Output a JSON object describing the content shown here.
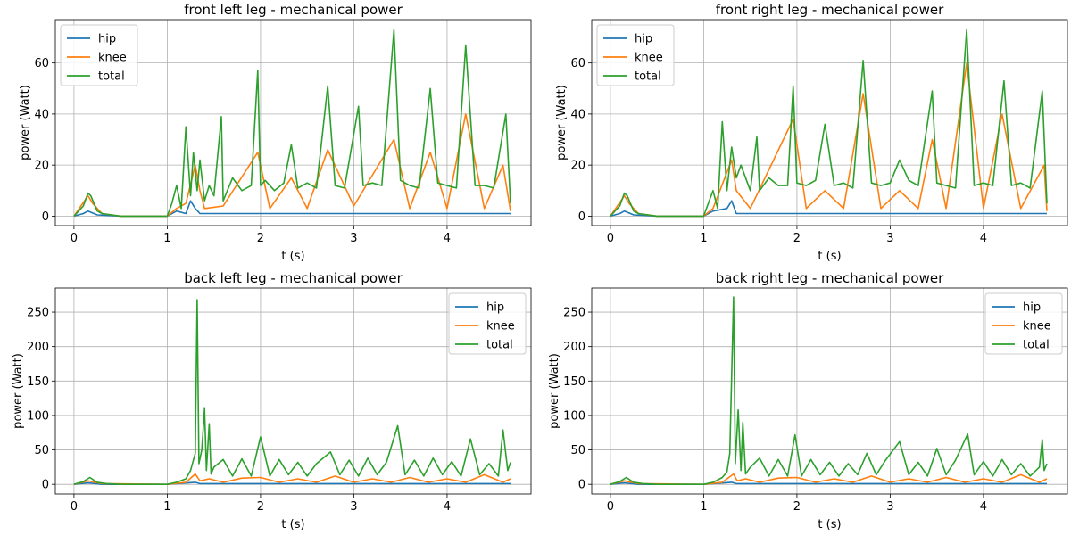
{
  "colors": {
    "hip": "#1f77b4",
    "knee": "#ff7f0e",
    "total": "#2ca02c"
  },
  "chart_data": [
    {
      "type": "line",
      "title": "front left leg - mechanical power",
      "xlabel": "t (s)",
      "ylabel": "power (Watt)",
      "xlim": [
        -0.2,
        4.9
      ],
      "ylim": [
        -3.7,
        77
      ],
      "xticks": [
        0,
        1,
        2,
        3,
        4
      ],
      "yticks": [
        0,
        20,
        40,
        60
      ],
      "grid": true,
      "legend_position": "top-left",
      "series": [
        {
          "name": "hip",
          "color": "#1f77b4",
          "x": [
            0.0,
            0.1,
            0.15,
            0.25,
            0.5,
            1.0,
            1.1,
            1.2,
            1.25,
            1.3,
            1.35,
            1.5,
            2.0,
            2.5,
            3.0,
            3.5,
            4.0,
            4.5,
            4.68
          ],
          "y": [
            0,
            1,
            2,
            0.5,
            0,
            0,
            2,
            1,
            6,
            3,
            1,
            1,
            1,
            1,
            1,
            1,
            1,
            1,
            1
          ]
        },
        {
          "name": "knee",
          "color": "#ff7f0e",
          "x": [
            0.0,
            0.15,
            0.2,
            0.3,
            0.5,
            1.0,
            1.1,
            1.2,
            1.3,
            1.35,
            1.4,
            1.6,
            1.97,
            2.1,
            2.33,
            2.5,
            2.72,
            3.0,
            3.43,
            3.6,
            3.82,
            4.0,
            4.2,
            4.4,
            4.6,
            4.68
          ],
          "y": [
            0,
            8,
            5,
            1,
            0,
            0,
            3,
            5,
            20,
            10,
            3,
            4,
            25,
            3,
            15,
            3,
            26,
            4,
            30,
            3,
            25,
            3,
            40,
            3,
            20,
            2
          ]
        },
        {
          "name": "total",
          "color": "#2ca02c",
          "x": [
            0.0,
            0.05,
            0.1,
            0.15,
            0.18,
            0.25,
            0.3,
            0.5,
            1.0,
            1.05,
            1.1,
            1.15,
            1.2,
            1.25,
            1.28,
            1.32,
            1.35,
            1.4,
            1.45,
            1.5,
            1.58,
            1.6,
            1.7,
            1.8,
            1.9,
            1.97,
            2.0,
            2.05,
            2.15,
            2.25,
            2.33,
            2.4,
            2.5,
            2.6,
            2.72,
            2.8,
            2.9,
            3.05,
            3.1,
            3.2,
            3.3,
            3.43,
            3.5,
            3.6,
            3.7,
            3.82,
            3.9,
            4.0,
            4.1,
            4.2,
            4.3,
            4.4,
            4.5,
            4.63,
            4.68
          ],
          "y": [
            0,
            2,
            4,
            9,
            8,
            2,
            1,
            0,
            0,
            5,
            12,
            3,
            35,
            8,
            25,
            10,
            22,
            6,
            12,
            8,
            39,
            6,
            15,
            10,
            12,
            57,
            12,
            14,
            10,
            13,
            28,
            11,
            13,
            11,
            51,
            12,
            11,
            43,
            12,
            13,
            12,
            73,
            14,
            12,
            11,
            50,
            13,
            12,
            11,
            67,
            12,
            12,
            11,
            40,
            5
          ]
        }
      ]
    },
    {
      "type": "line",
      "title": "front right leg - mechanical power",
      "xlabel": "t (s)",
      "ylabel": "power (Watt)",
      "xlim": [
        -0.2,
        4.9
      ],
      "ylim": [
        -3.7,
        77
      ],
      "xticks": [
        0,
        1,
        2,
        3,
        4
      ],
      "yticks": [
        0,
        20,
        40,
        60
      ],
      "grid": true,
      "legend_position": "top-left",
      "series": [
        {
          "name": "hip",
          "color": "#1f77b4",
          "x": [
            0.0,
            0.1,
            0.15,
            0.25,
            0.5,
            1.0,
            1.1,
            1.25,
            1.3,
            1.35,
            1.5,
            2.0,
            2.5,
            3.0,
            3.5,
            4.0,
            4.5,
            4.68
          ],
          "y": [
            0,
            1,
            2,
            0.5,
            0,
            0,
            2,
            3,
            6,
            1,
            1,
            1,
            1,
            1,
            1,
            1,
            1,
            1
          ]
        },
        {
          "name": "knee",
          "color": "#ff7f0e",
          "x": [
            0.0,
            0.15,
            0.2,
            0.3,
            0.5,
            1.0,
            1.1,
            1.3,
            1.35,
            1.5,
            1.96,
            2.1,
            2.3,
            2.5,
            2.71,
            2.9,
            3.1,
            3.3,
            3.45,
            3.6,
            3.82,
            4.0,
            4.2,
            4.4,
            4.65,
            4.68
          ],
          "y": [
            0,
            8,
            5,
            1,
            0,
            0,
            3,
            22,
            10,
            3,
            38,
            3,
            10,
            3,
            48,
            3,
            10,
            3,
            30,
            3,
            60,
            3,
            40,
            3,
            20,
            2
          ]
        },
        {
          "name": "total",
          "color": "#2ca02c",
          "x": [
            0.0,
            0.05,
            0.1,
            0.15,
            0.18,
            0.25,
            0.3,
            0.5,
            1.0,
            1.05,
            1.1,
            1.15,
            1.2,
            1.25,
            1.3,
            1.35,
            1.4,
            1.5,
            1.57,
            1.6,
            1.7,
            1.8,
            1.9,
            1.96,
            2.0,
            2.1,
            2.2,
            2.3,
            2.4,
            2.5,
            2.6,
            2.71,
            2.8,
            2.9,
            3.0,
            3.1,
            3.2,
            3.3,
            3.45,
            3.5,
            3.6,
            3.7,
            3.82,
            3.9,
            4.0,
            4.1,
            4.22,
            4.3,
            4.4,
            4.5,
            4.63,
            4.68
          ],
          "y": [
            0,
            2,
            4,
            9,
            8,
            2,
            1,
            0,
            0,
            5,
            10,
            3,
            37,
            10,
            27,
            15,
            20,
            10,
            31,
            10,
            15,
            12,
            12,
            51,
            13,
            12,
            14,
            36,
            12,
            13,
            11,
            61,
            13,
            12,
            13,
            22,
            14,
            12,
            49,
            13,
            12,
            11,
            73,
            12,
            13,
            12,
            53,
            12,
            13,
            11,
            49,
            5
          ]
        }
      ]
    },
    {
      "type": "line",
      "title": "back left leg - mechanical power",
      "xlabel": "t (s)",
      "ylabel": "power (Watt)",
      "xlim": [
        -0.2,
        4.9
      ],
      "ylim": [
        -14,
        285
      ],
      "xticks": [
        0,
        1,
        2,
        3,
        4
      ],
      "yticks": [
        0,
        50,
        100,
        150,
        200,
        250
      ],
      "grid": true,
      "legend_position": "top-right",
      "series": [
        {
          "name": "hip",
          "color": "#1f77b4",
          "x": [
            0.0,
            0.15,
            0.3,
            1.0,
            1.3,
            1.35,
            1.5,
            2.0,
            2.5,
            3.0,
            3.5,
            4.0,
            4.5,
            4.68
          ],
          "y": [
            0,
            2,
            0,
            0,
            3,
            1,
            1,
            1,
            1,
            1,
            1,
            1,
            1,
            1
          ]
        },
        {
          "name": "knee",
          "color": "#ff7f0e",
          "x": [
            0.0,
            0.15,
            0.3,
            1.0,
            1.2,
            1.3,
            1.35,
            1.45,
            1.6,
            1.8,
            2.0,
            2.2,
            2.4,
            2.6,
            2.8,
            3.0,
            3.2,
            3.4,
            3.6,
            3.8,
            4.0,
            4.2,
            4.4,
            4.6,
            4.68
          ],
          "y": [
            0,
            5,
            1,
            0,
            3,
            15,
            5,
            8,
            3,
            9,
            10,
            3,
            8,
            3,
            12,
            3,
            8,
            3,
            10,
            3,
            8,
            3,
            14,
            3,
            8
          ]
        },
        {
          "name": "total",
          "color": "#2ca02c",
          "x": [
            0.0,
            0.05,
            0.1,
            0.17,
            0.25,
            0.35,
            0.5,
            1.0,
            1.1,
            1.2,
            1.25,
            1.3,
            1.32,
            1.34,
            1.37,
            1.4,
            1.42,
            1.45,
            1.47,
            1.5,
            1.6,
            1.7,
            1.8,
            1.9,
            2.0,
            2.1,
            2.2,
            2.3,
            2.4,
            2.5,
            2.6,
            2.75,
            2.85,
            2.95,
            3.05,
            3.15,
            3.25,
            3.35,
            3.47,
            3.55,
            3.65,
            3.75,
            3.85,
            3.95,
            4.05,
            4.15,
            4.25,
            4.35,
            4.45,
            4.55,
            4.6,
            4.65,
            4.68
          ],
          "y": [
            0,
            2,
            4,
            10,
            3,
            1,
            0,
            0,
            3,
            8,
            20,
            45,
            268,
            30,
            50,
            110,
            20,
            88,
            15,
            25,
            36,
            12,
            37,
            12,
            69,
            12,
            36,
            14,
            32,
            12,
            30,
            47,
            14,
            35,
            12,
            38,
            14,
            32,
            85,
            14,
            35,
            12,
            38,
            14,
            33,
            12,
            66,
            14,
            30,
            12,
            79,
            20,
            32
          ]
        }
      ]
    },
    {
      "type": "line",
      "title": "back right leg - mechanical power",
      "xlabel": "t (s)",
      "ylabel": "power (Watt)",
      "xlim": [
        -0.2,
        4.9
      ],
      "ylim": [
        -14,
        285
      ],
      "xticks": [
        0,
        1,
        2,
        3,
        4
      ],
      "yticks": [
        0,
        50,
        100,
        150,
        200,
        250
      ],
      "grid": true,
      "legend_position": "top-right",
      "series": [
        {
          "name": "hip",
          "color": "#1f77b4",
          "x": [
            0.0,
            0.15,
            0.3,
            1.0,
            1.3,
            1.35,
            1.5,
            2.0,
            2.5,
            3.0,
            3.5,
            4.0,
            4.5,
            4.68
          ],
          "y": [
            0,
            2,
            0,
            0,
            3,
            1,
            1,
            1,
            1,
            1,
            1,
            1,
            1,
            1
          ]
        },
        {
          "name": "knee",
          "color": "#ff7f0e",
          "x": [
            0.0,
            0.15,
            0.3,
            1.0,
            1.2,
            1.32,
            1.36,
            1.45,
            1.6,
            1.8,
            2.0,
            2.2,
            2.4,
            2.6,
            2.8,
            3.0,
            3.2,
            3.4,
            3.6,
            3.8,
            4.0,
            4.2,
            4.4,
            4.6,
            4.68
          ],
          "y": [
            0,
            5,
            1,
            0,
            3,
            15,
            5,
            8,
            3,
            9,
            10,
            3,
            8,
            3,
            12,
            3,
            8,
            3,
            10,
            3,
            8,
            3,
            14,
            3,
            8
          ]
        },
        {
          "name": "total",
          "color": "#2ca02c",
          "x": [
            0.0,
            0.05,
            0.1,
            0.17,
            0.25,
            0.35,
            0.5,
            1.0,
            1.1,
            1.2,
            1.25,
            1.28,
            1.32,
            1.34,
            1.37,
            1.4,
            1.42,
            1.45,
            1.5,
            1.6,
            1.7,
            1.8,
            1.9,
            1.98,
            2.05,
            2.15,
            2.25,
            2.35,
            2.45,
            2.55,
            2.65,
            2.75,
            2.85,
            2.95,
            3.1,
            3.2,
            3.3,
            3.4,
            3.5,
            3.6,
            3.7,
            3.83,
            3.9,
            4.0,
            4.1,
            4.2,
            4.3,
            4.4,
            4.5,
            4.6,
            4.63,
            4.65,
            4.68
          ],
          "y": [
            0,
            2,
            4,
            10,
            3,
            1,
            0,
            0,
            3,
            10,
            18,
            45,
            272,
            30,
            108,
            20,
            90,
            15,
            25,
            38,
            12,
            36,
            12,
            72,
            12,
            36,
            14,
            32,
            12,
            30,
            14,
            45,
            14,
            35,
            62,
            14,
            32,
            12,
            52,
            14,
            35,
            73,
            14,
            33,
            12,
            36,
            14,
            30,
            12,
            25,
            65,
            20,
            30
          ]
        }
      ]
    }
  ]
}
